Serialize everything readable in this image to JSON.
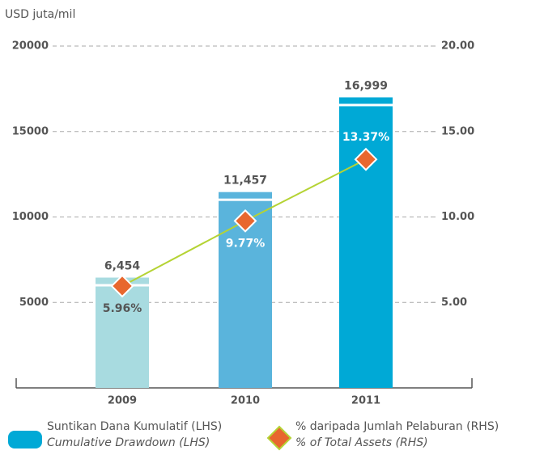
{
  "chart_data": {
    "type": "bar_line",
    "y_axis_label": "USD juta/mil",
    "categories": [
      "2009",
      "2010",
      "2011"
    ],
    "series": [
      {
        "name": "Suntikan Dana Kumulatif (LHS)",
        "name_en": "Cumulative Drawdown (LHS)",
        "type": "bar",
        "color": "#00a9d6",
        "colors": [
          "#a8dbe0",
          "#5ab4dc",
          "#00a9d6"
        ],
        "values": [
          6454,
          11457,
          16999
        ],
        "value_labels": [
          "6,454",
          "11,457",
          "16,999"
        ]
      },
      {
        "name": "% daripada Jumlah Pelaburan (RHS)",
        "name_en": "% of Total Assets (RHS)",
        "type": "line",
        "axis": "y2",
        "color": "#b5d334",
        "marker_color": "#e8672e",
        "values": [
          5.96,
          9.77,
          13.37
        ],
        "value_labels": [
          "5.96%",
          "9.77%",
          "13.37%"
        ]
      }
    ],
    "ylim": [
      0,
      20000
    ],
    "yticks": [
      5000,
      10000,
      15000,
      20000
    ],
    "y2lim": [
      0,
      20
    ],
    "y2ticks": [
      {
        "value": 5,
        "label": "5.00"
      },
      {
        "value": 10,
        "label": "10.00"
      },
      {
        "value": 15,
        "label": "15.00"
      },
      {
        "value": 20,
        "label": "20.00"
      }
    ],
    "grid": true
  }
}
